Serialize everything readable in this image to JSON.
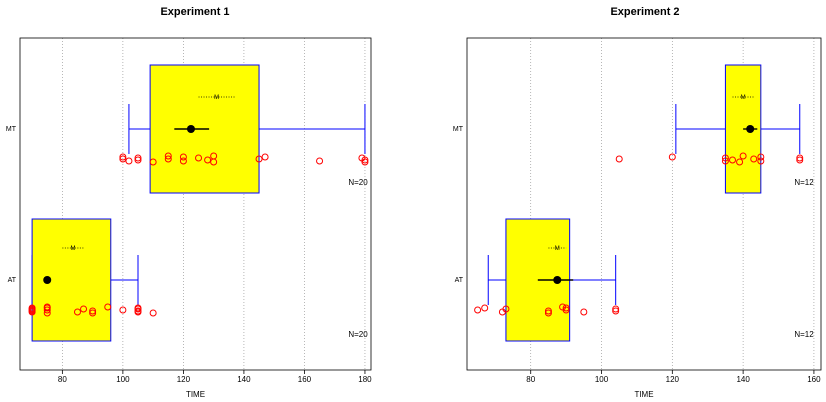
{
  "chart_data": [
    {
      "type": "box",
      "title": "Experiment 1",
      "xlabel": "TIME",
      "xlim": [
        66,
        182
      ],
      "xticks": [
        80,
        100,
        120,
        140,
        160,
        180
      ],
      "grid": "vertical dotted",
      "categories": [
        "MT",
        "AT"
      ],
      "box_fill": "#ffff00",
      "box_stroke": "#0000ff",
      "point_color": "#ff0000",
      "mean_color": "#000000",
      "series": [
        {
          "name": "MT",
          "q1": 109,
          "q3": 145,
          "whisker_low": 102,
          "whisker_high": 180,
          "mean": 122.5,
          "mean_ci": [
            117,
            128.5
          ],
          "mean_label": "M",
          "m_range": [
            125,
            137
          ],
          "n_label": "N=20",
          "points": [
            100,
            100,
            102,
            105,
            105,
            110,
            115,
            115,
            120,
            120,
            125,
            128,
            130,
            130,
            145,
            147,
            165,
            179,
            180,
            180
          ]
        },
        {
          "name": "AT",
          "q1": 70,
          "q3": 96,
          "whisker_low": 70,
          "whisker_high": 105,
          "mean": 75,
          "mean_ci": [
            74,
            76
          ],
          "mean_label": "M",
          "m_range": [
            80,
            87
          ],
          "n_label": "N=20",
          "points": [
            70,
            70,
            70,
            70,
            70,
            75,
            75,
            75,
            75,
            85,
            87,
            90,
            90,
            95,
            100,
            105,
            105,
            105,
            105,
            110
          ]
        }
      ]
    },
    {
      "type": "box",
      "title": "Experiment 2",
      "xlabel": "TIME",
      "xlim": [
        62,
        162
      ],
      "xticks": [
        80,
        100,
        120,
        140,
        160
      ],
      "grid": "vertical dotted",
      "categories": [
        "MT",
        "AT"
      ],
      "box_fill": "#ffff00",
      "box_stroke": "#0000ff",
      "point_color": "#ff0000",
      "mean_color": "#000000",
      "series": [
        {
          "name": "MT",
          "q1": 135,
          "q3": 145,
          "whisker_low": 121,
          "whisker_high": 156,
          "mean": 142,
          "mean_ci": [
            140,
            144
          ],
          "mean_label": "M",
          "m_range": [
            137,
            143
          ],
          "n_label": "N=12",
          "points": [
            105,
            120,
            135,
            135,
            137,
            139,
            140,
            143,
            145,
            145,
            156,
            156
          ]
        },
        {
          "name": "AT",
          "q1": 73,
          "q3": 91,
          "whisker_low": 68,
          "whisker_high": 104,
          "mean": 87.5,
          "mean_ci": [
            82,
            92
          ],
          "mean_label": "M",
          "m_range": [
            85,
            90
          ],
          "n_label": "N=12",
          "points": [
            65,
            67,
            72,
            73,
            85,
            85,
            89,
            90,
            90,
            95,
            104,
            104
          ]
        }
      ]
    }
  ]
}
